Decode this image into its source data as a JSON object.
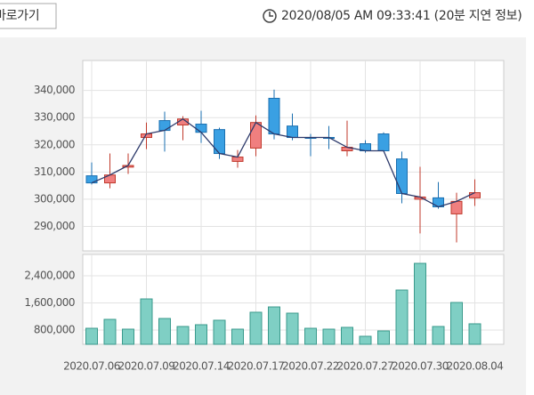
{
  "header": {
    "button": "바로가기",
    "timestamp": "2020/08/05 AM 09:33:41 (20분 지연 정보)"
  },
  "chart_data": [
    {
      "type": "candlestick",
      "categories": [
        "2020.07.06",
        null,
        null,
        "2020.07.09",
        null,
        null,
        "2020.07.14",
        null,
        null,
        "2020.07.17",
        null,
        null,
        "2020.07.22",
        null,
        null,
        "2020.07.27",
        null,
        null,
        "2020.07.30",
        null,
        null,
        "2020.08.04"
      ],
      "open": [
        308600,
        306000,
        311800,
        322700,
        328900,
        327300,
        327600,
        325600,
        313900,
        318800,
        337100,
        326900,
        322700,
        322700,
        317800,
        320400,
        324000,
        314800,
        300000,
        300500,
        294600,
        300500
      ],
      "high": [
        313500,
        316800,
        316800,
        328200,
        332200,
        330500,
        332500,
        326300,
        318100,
        330800,
        340300,
        331500,
        324000,
        326900,
        328900,
        321700,
        324600,
        317500,
        311900,
        306300,
        302400,
        307300
      ],
      "low": [
        305400,
        304000,
        309300,
        318400,
        317500,
        321700,
        320700,
        314800,
        311600,
        315800,
        322000,
        321700,
        315800,
        318400,
        315800,
        317100,
        317500,
        298500,
        287400,
        296500,
        284100,
        297500
      ],
      "close": [
        306000,
        308900,
        312400,
        324000,
        325300,
        329500,
        324600,
        316800,
        315500,
        328200,
        324000,
        322700,
        322700,
        322700,
        319100,
        317800,
        317800,
        302100,
        300800,
        297200,
        299200,
        302400
      ],
      "up_color": "#f07f7f",
      "down_color": "#3aa0e3",
      "line_color": "#2d3a6b",
      "ylim": [
        281000,
        351000
      ],
      "yticks": [
        {
          "value": 290000,
          "label": "290,000"
        },
        {
          "value": 300000,
          "label": "300,000"
        },
        {
          "value": 310000,
          "label": "310,000"
        },
        {
          "value": 320000,
          "label": "320,000"
        },
        {
          "value": 330000,
          "label": "330,000"
        },
        {
          "value": 340000,
          "label": "340,000"
        }
      ],
      "grid": true
    },
    {
      "type": "bar",
      "values": [
        852000,
        1115000,
        826000,
        1718000,
        1141000,
        905000,
        957000,
        1089000,
        826000,
        1325000,
        1482000,
        1298000,
        852000,
        826000,
        879000,
        616000,
        774000,
        1980000,
        2767000,
        905000,
        1613000,
        984000
      ],
      "color": "#7fcfc4",
      "ylim": [
        380000,
        3030000
      ],
      "yticks": [
        {
          "value": 800000,
          "label": "800,000"
        },
        {
          "value": 1600000,
          "label": "1,600,000"
        },
        {
          "value": 2400000,
          "label": "2,400,000"
        }
      ],
      "grid": true
    }
  ]
}
